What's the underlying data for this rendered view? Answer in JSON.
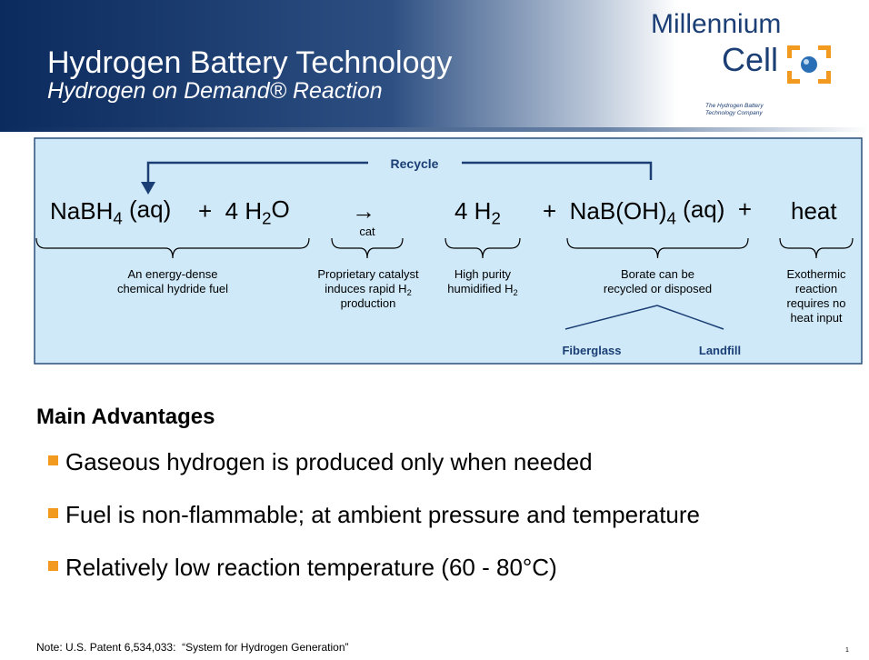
{
  "header": {
    "title": "Hydrogen Battery Technology",
    "subtitle": "Hydrogen on Demand® Reaction"
  },
  "logo": {
    "name_line_1": "Millennium",
    "name_line_2": "Cell",
    "tagline": [
      "The Hydrogen Battery",
      "Technology Company"
    ]
  },
  "diagram": {
    "recycle_label": "Recycle",
    "equation": [
      [
        "NaBH",
        "4",
        " (aq)"
      ],
      [
        "+  4 H",
        "2",
        "O"
      ],
      [
        "→"
      ],
      [
        "4 H",
        "2"
      ],
      [
        "+  NaB(OH)",
        "4",
        " (aq)  +"
      ],
      [
        "heat"
      ]
    ],
    "catalyst_label": "cat",
    "annotations": [
      [
        [
          "An energy-dense"
        ],
        [
          "chemical hydride fuel"
        ]
      ],
      [
        [
          "Proprietary catalyst"
        ],
        [
          "induces rapid H",
          "2"
        ],
        [
          "production"
        ]
      ],
      [
        [
          "High purity"
        ],
        [
          "humidified H",
          "2"
        ]
      ],
      [
        [
          "Borate can be"
        ],
        [
          "recycled or disposed"
        ]
      ],
      [
        [
          "Exothermic"
        ],
        [
          "reaction"
        ],
        [
          "requires no"
        ],
        [
          "heat input"
        ]
      ]
    ],
    "borate_uses": [
      "Fiberglass",
      "Landfill"
    ]
  },
  "advantages": {
    "heading": "Main Advantages",
    "items": [
      "Gaseous hydrogen is produced only when needed",
      "Fuel is non-flammable; at ambient pressure and temperature",
      "Relatively low reaction temperature (60 - 80°C)"
    ]
  },
  "footer": {
    "note": "Note: U.S. Patent 6,534,033:  “System for Hydrogen Generation”",
    "page_number": "1"
  }
}
